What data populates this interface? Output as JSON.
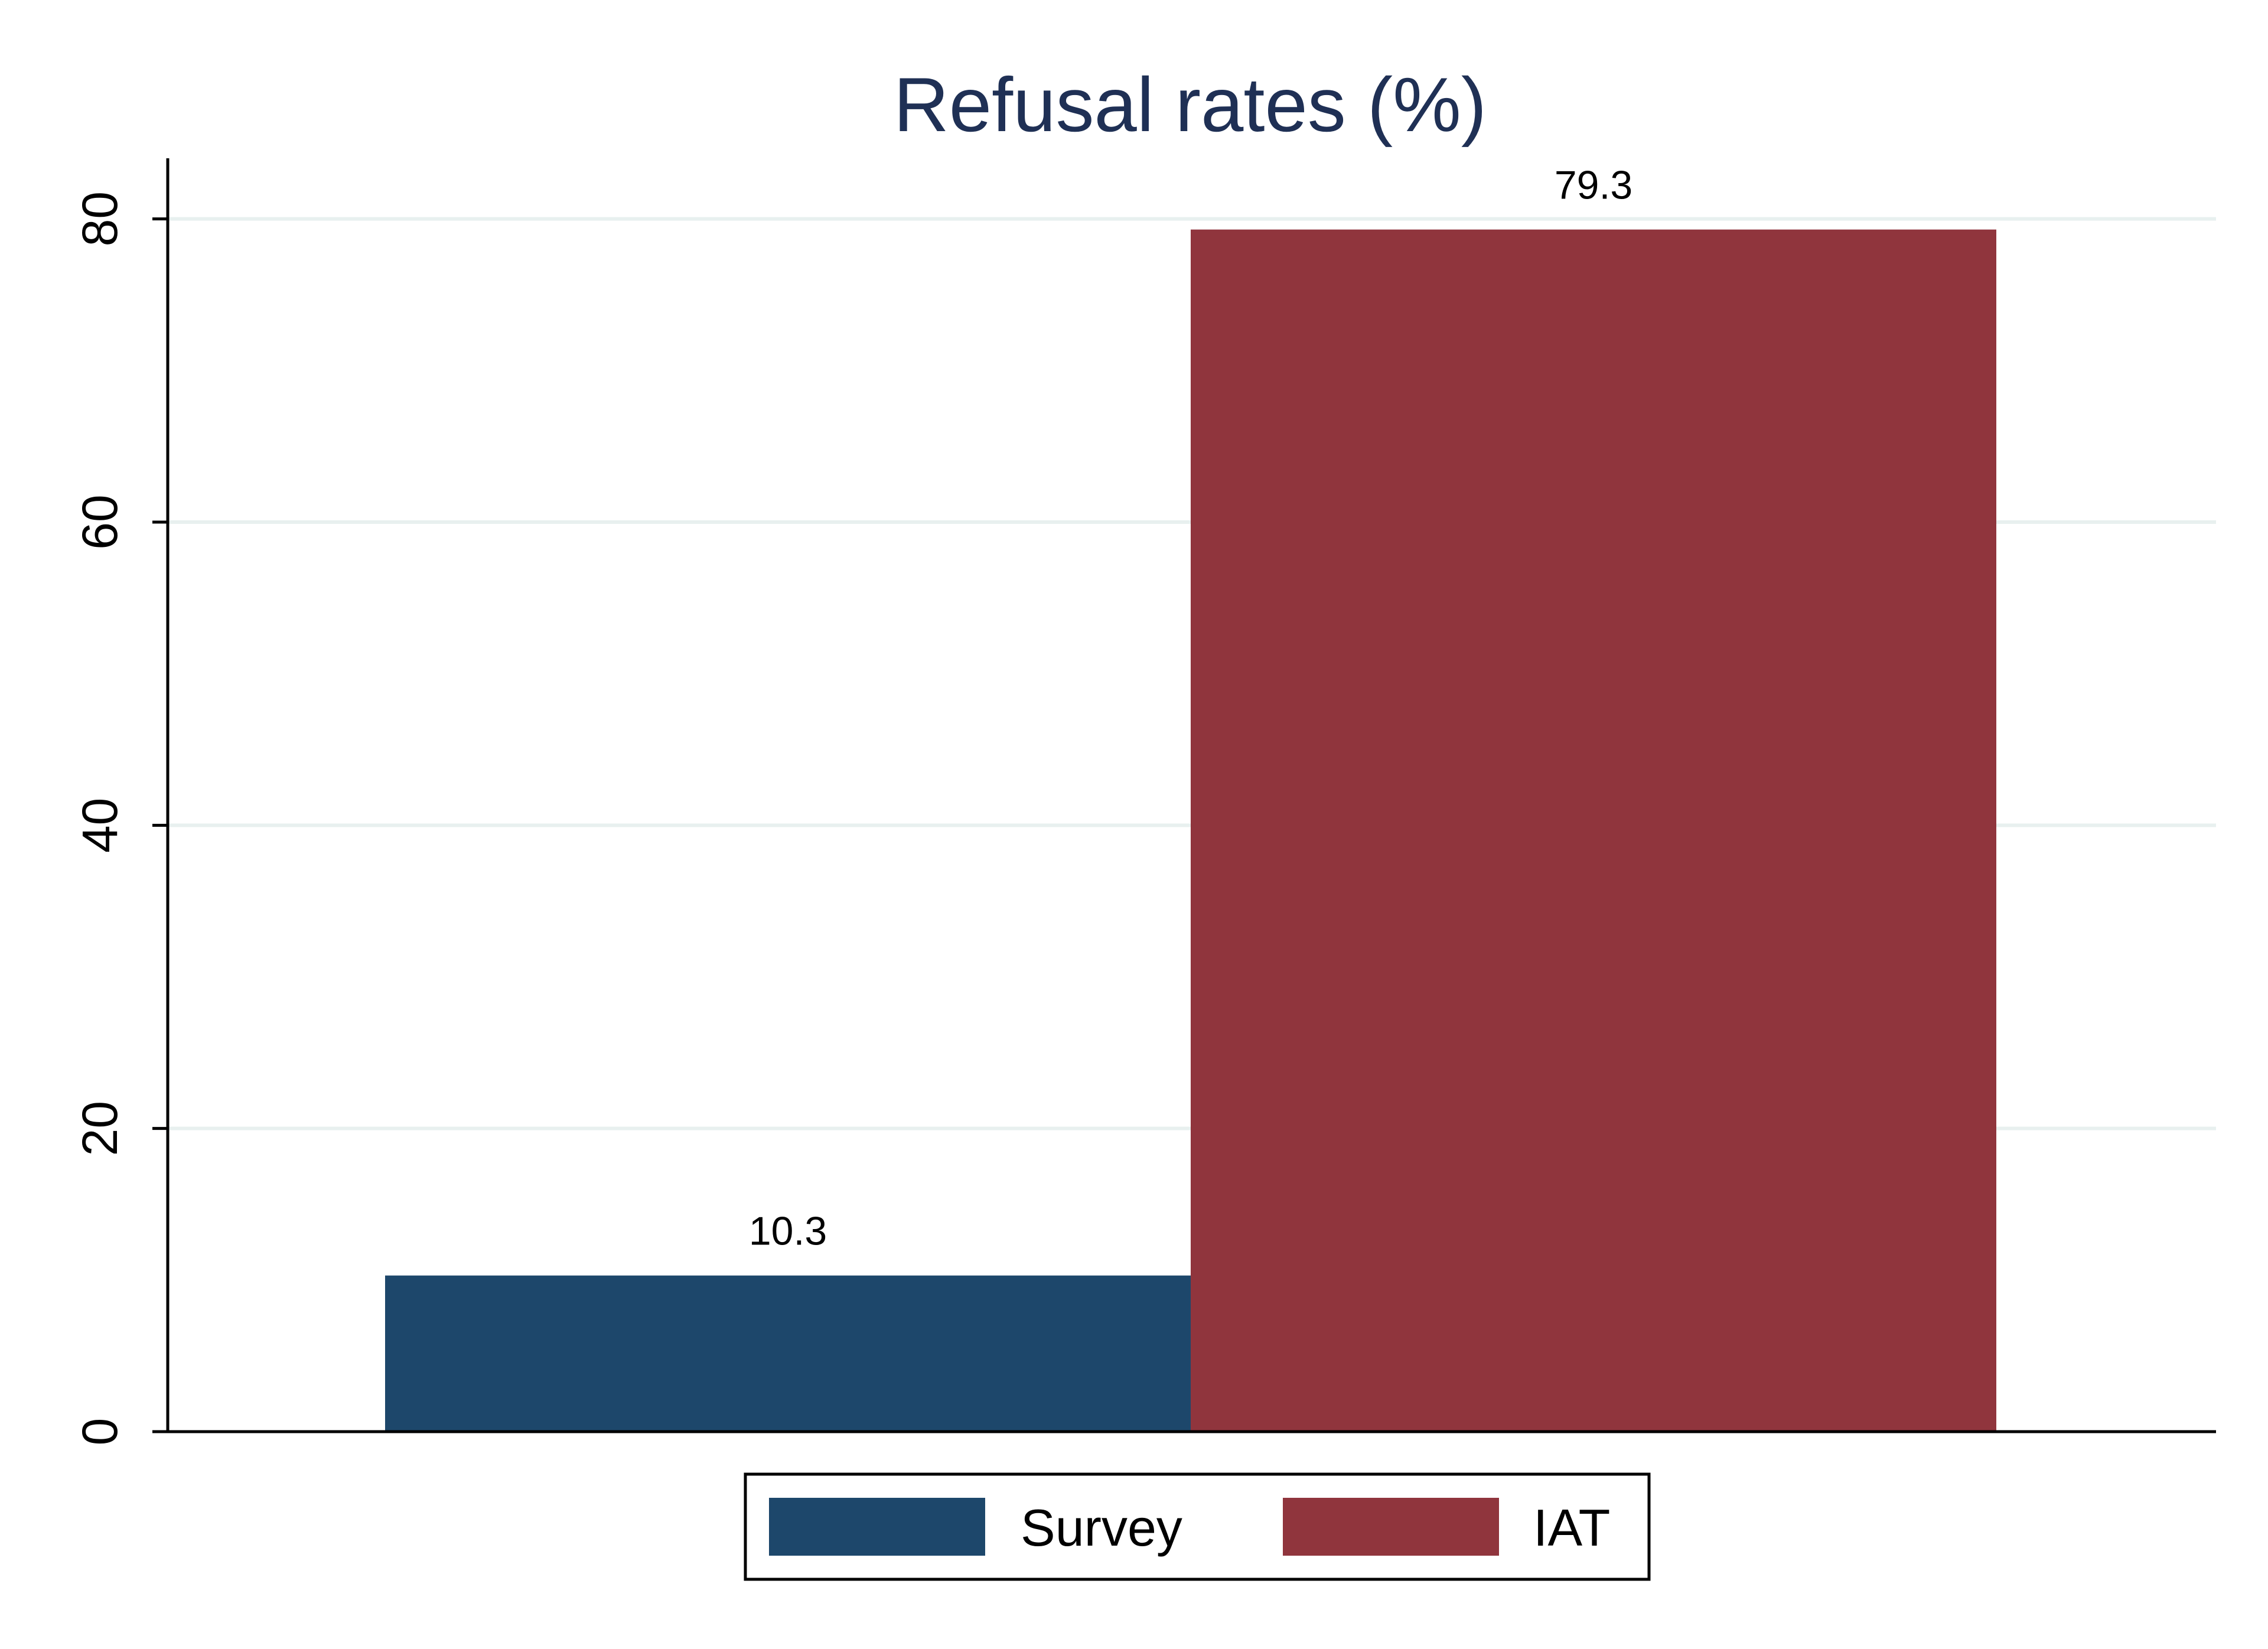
{
  "chart_data": {
    "type": "bar",
    "title": "Refusal rates (%)",
    "xlabel": "",
    "ylabel": "",
    "ylim": [
      0,
      84
    ],
    "yticks": [
      0,
      20,
      40,
      60,
      80
    ],
    "grid": true,
    "legend_position": "bottom",
    "series": [
      {
        "name": "Survey",
        "value": 10.3,
        "label": "10.3",
        "color": "#1d476b"
      },
      {
        "name": "IAT",
        "value": 79.3,
        "label": "79.3",
        "color": "#90353d"
      }
    ]
  }
}
